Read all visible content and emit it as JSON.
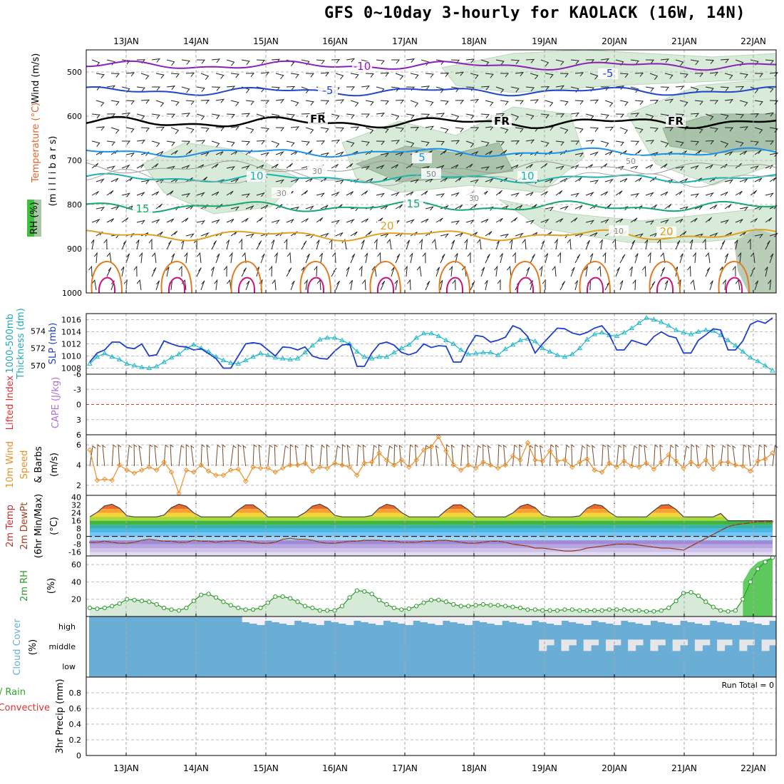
{
  "title": "GFS 0~10day 3-hourly for KAOLACK (16W, 14N)",
  "dates": [
    "13JAN",
    "14JAN",
    "15JAN",
    "16JAN",
    "17JAN",
    "18JAN",
    "19JAN",
    "20JAN",
    "21JAN",
    "22JAN"
  ],
  "panels": {
    "upper": {
      "ylabel_wind": "Wind (m/s)",
      "ylabel_temp": "Temperature (°C)",
      "ylabel_rh": "RH (%)",
      "ylabel_p": "(m i l l i b a r s)",
      "pressure_ticks": [
        "500",
        "600",
        "700",
        "800",
        "900",
        "1000"
      ],
      "contour_labels": [
        "-10",
        "-5",
        "-5",
        "FR",
        "FR",
        "FR",
        "5",
        "10",
        "10",
        "15",
        "15",
        "20",
        "20",
        "30",
        "30",
        "30",
        "50",
        "50",
        "10"
      ]
    },
    "slp": {
      "ylabel_a": "1000-500mb",
      "ylabel_b": "Thickness (dm)",
      "ylabel_c": "SLP (mb)",
      "left_ticks": [
        "574",
        "572",
        "570"
      ],
      "right_ticks": [
        "1016",
        "1014",
        "1012",
        "1010",
        "1008"
      ]
    },
    "cape": {
      "ylabel_a": "Lifted Index",
      "ylabel_b": "CAPE (J/kg)",
      "ticks": [
        "-6",
        "-3",
        "0",
        "3",
        "6"
      ]
    },
    "wind10": {
      "ylabel_a": "10m Wind",
      "ylabel_b": "Speed",
      "ylabel_c": "& Barbs",
      "ylabel_d": "(m/s)",
      "ticks": [
        "6",
        "4",
        "2"
      ]
    },
    "temp2m": {
      "ylabel_a": "2m Temp",
      "ylabel_b": "2m DewPt",
      "ylabel_c": "(6hr Min/Max)",
      "ylabel_d": "(°C)",
      "ticks": [
        "40",
        "32",
        "24",
        "16",
        "8",
        "0",
        "-8",
        "-16"
      ]
    },
    "rh2m": {
      "ylabel_a": "2m RH",
      "ylabel_b": "(%)",
      "ticks": [
        "60",
        "40",
        "20"
      ]
    },
    "cloud": {
      "ylabel_a": "Cloud Cover",
      "ylabel_b": "(%)",
      "levels": [
        "high",
        "middle",
        "low"
      ]
    },
    "precip": {
      "ylabel_a": "Total / Rain",
      "ylabel_b": "Convective",
      "ylabel_c": "3hr Precip (mm)",
      "ticks": [
        "0.8",
        "0.6",
        "0.4",
        "0.2",
        "0"
      ],
      "run_total": "Run Total = 0"
    }
  },
  "colors": {
    "slp": "#1f3fcc",
    "thickness": "#22b8c8",
    "wind10": "#e8902a",
    "rh": "#2a9a2a",
    "cloud": "#6aaed6",
    "cloud_bg": "#f3f0f8",
    "limit": "#dd3333"
  },
  "chart_data": [
    {
      "type": "line",
      "name": "sea level pressure",
      "units": "mb",
      "ylim": [
        1007,
        1017
      ],
      "values": [
        1009,
        1010.5,
        1011,
        1012.3,
        1012.3,
        1011.4,
        1011.2,
        1012,
        1010,
        1010.2,
        1012.5,
        1012,
        1011.6,
        1011.5,
        1011,
        1011.2,
        1010.4,
        1009.6,
        1008,
        1008,
        1010,
        1012,
        1012.2,
        1012,
        1011,
        1010,
        1011.5,
        1011.4,
        1011,
        1011.5,
        1010,
        1009.6,
        1009.5,
        1010.8,
        1011.8,
        1012,
        1008.3,
        1008.3,
        1010.5,
        1012,
        1012.3,
        1011.8,
        1010.6,
        1010.2,
        1010.6,
        1012,
        1011.4,
        1011.7,
        1011.6,
        1009,
        1009,
        1011.5,
        1013.4,
        1013.2,
        1012.3,
        1012.6,
        1013.1,
        1015,
        1014.5,
        1013.2,
        1010.5,
        1012,
        1013.3,
        1014.6,
        1014.5,
        1013.8,
        1013.5,
        1013.9,
        1014.6,
        1015,
        1013.5,
        1011,
        1011,
        1012.6,
        1012.2,
        1011.8,
        1013.2,
        1014,
        1013.3,
        1013,
        1010.5,
        1010.5,
        1012.6,
        1013.5,
        1014.5,
        1014.3,
        1011,
        1011,
        1012.5,
        1015.2,
        1015.8,
        1015.4,
        1016.3
      ]
    },
    {
      "type": "line",
      "name": "1000-500mb thickness",
      "units": "dm",
      "ylim": [
        569,
        576
      ],
      "values": [
        570.2,
        571,
        571.4,
        571,
        570.7,
        570.2,
        570,
        569.8,
        569.7,
        569.9,
        570.4,
        570.9,
        571.3,
        572,
        572.4,
        572,
        571.6,
        571,
        570.6,
        570.3,
        570.2,
        570.6,
        571,
        571.4,
        571.2,
        570.9,
        570.8,
        570.7,
        570.8,
        571.5,
        572.3,
        573,
        573.2,
        573.2,
        572.9,
        572.5,
        571.6,
        571,
        570.8,
        571,
        571,
        571.5,
        572,
        572.4,
        573.2,
        573.7,
        573.7,
        573.4,
        572.9,
        572.5,
        571.8,
        571.3,
        571.4,
        571.5,
        571.5,
        571.2,
        571.9,
        572.4,
        572.9,
        573.1,
        572.8,
        572,
        571.6,
        571.2,
        571,
        571.3,
        572,
        573,
        573.6,
        573.8,
        573.5,
        573.4,
        573.8,
        574.3,
        574.9,
        575.5,
        575.3,
        575,
        574.6,
        574.1,
        573.8,
        573.6,
        573.9,
        574.1,
        574,
        573.5,
        572.9,
        572.3,
        571.6,
        570.9,
        570.5,
        570,
        569.4
      ]
    },
    {
      "type": "line",
      "name": "10m wind speed",
      "units": "m/s",
      "ylim": [
        1,
        7
      ],
      "values": [
        5.5,
        2.5,
        2.6,
        2.5,
        4,
        3.5,
        3.2,
        3.5,
        3.8,
        3.5,
        4.3,
        3.3,
        1.2,
        3.5,
        3.3,
        4,
        3.4,
        3,
        3,
        3.5,
        3.6,
        2.4,
        3.8,
        3.7,
        3.7,
        3.3,
        3.7,
        4,
        4,
        4.2,
        3.4,
        3.8,
        3.7,
        4.2,
        4,
        3.8,
        3,
        4.2,
        4.3,
        5.2,
        4.5,
        4,
        4.5,
        3.8,
        4.5,
        5.5,
        5.8,
        6.8,
        5.4,
        4,
        3.5,
        4,
        3.7,
        4.3,
        4,
        3.7,
        4,
        4.9,
        4.5,
        6.2,
        4.5,
        4.4,
        5.4,
        4.4,
        4.5,
        3.8,
        4.3,
        4.6,
        3.5,
        3.3,
        4.2,
        3.8,
        4.4,
        3.9,
        3.8,
        4.2,
        3.6,
        4.3,
        5,
        4.4,
        3.7,
        4.3,
        3.9,
        4.5,
        3.6,
        4.3,
        4.3,
        4,
        3.9,
        3.4,
        4.4,
        4.6,
        5.2
      ]
    },
    {
      "type": "area",
      "name": "2m temperature",
      "units": "°C",
      "ylim": [
        -20,
        42
      ],
      "dewpoint": [
        -6,
        -6,
        -5,
        -6,
        -7,
        -7,
        -6,
        -4,
        -3,
        -4,
        -5,
        -5,
        -6,
        -6,
        -4,
        -5,
        -5,
        -6,
        -5,
        -5,
        -4,
        -5,
        -6,
        -7,
        -7,
        -6,
        -3,
        -2,
        -3,
        -3,
        -4,
        -6,
        -7,
        -7,
        -6,
        -5,
        -5,
        -4,
        -4,
        -4,
        -5,
        -5,
        -6,
        -6,
        -6,
        -5,
        -5,
        -4,
        -4,
        -5,
        -6,
        -7,
        -7,
        -6,
        -5,
        -5,
        -6,
        -8,
        -9,
        -10,
        -12,
        -12,
        -13,
        -14,
        -15,
        -15,
        -14,
        -12,
        -11,
        -10,
        -9,
        -8,
        -8,
        -8,
        -9,
        -10,
        -11,
        -12,
        -12,
        -13,
        -14,
        -10,
        -6,
        -2,
        2,
        6,
        10,
        12,
        13,
        14,
        15,
        15,
        15
      ]
    },
    {
      "type": "line",
      "name": "2m RH",
      "units": "%",
      "ylim": [
        0,
        70
      ],
      "values": [
        10,
        9,
        10,
        12,
        15,
        20,
        19,
        18,
        17,
        14,
        10,
        8,
        7,
        10,
        18,
        25,
        26,
        22,
        17,
        13,
        10,
        8,
        8,
        10,
        16,
        23,
        23,
        21,
        17,
        12,
        10,
        7,
        7,
        7,
        12,
        22,
        30,
        29,
        26,
        19,
        14,
        10,
        8,
        9,
        12,
        16,
        19,
        19,
        17,
        14,
        12,
        12,
        13,
        14,
        13,
        13,
        12,
        11,
        10,
        8,
        8,
        7,
        7,
        7,
        8,
        8,
        7,
        7,
        7,
        7,
        8,
        8,
        8,
        7,
        7,
        6,
        6,
        7,
        10,
        18,
        27,
        28,
        24,
        17,
        11,
        7,
        6,
        7,
        20,
        40,
        55,
        63,
        68
      ]
    },
    {
      "type": "bar",
      "name": "3hr precipitation",
      "units": "mm",
      "ylim": [
        0,
        1
      ],
      "run_total": 0
    }
  ]
}
